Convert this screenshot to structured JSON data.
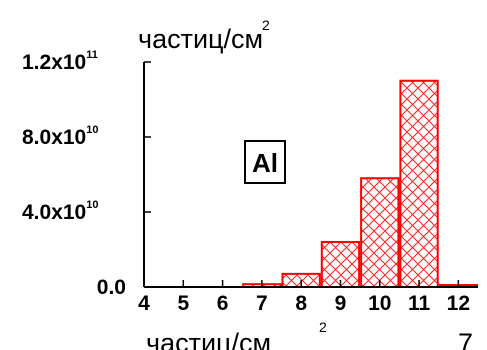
{
  "chart_data": {
    "type": "bar",
    "x": [
      7,
      8,
      9,
      10,
      11,
      12
    ],
    "values": [
      1500000000.0,
      7000000000.0,
      24000000000.0,
      58000000000.0,
      110000000000.0,
      300000000.0
    ],
    "xlim": [
      4,
      12.5
    ],
    "ylim": [
      0,
      120000000000.0
    ],
    "x_ticks": [
      "4",
      "5",
      "6",
      "7",
      "8",
      "9",
      "10",
      "11",
      "12"
    ],
    "y_ticks": [
      {
        "mantissa": "0.0",
        "exp": ""
      },
      {
        "mantissa": "4.0x10",
        "exp": "10"
      },
      {
        "mantissa": "8.0x10",
        "exp": "10"
      },
      {
        "mantissa": "1.2x10",
        "exp": "11"
      }
    ],
    "ylabel": "частиц/см",
    "ylabel_sup": "2",
    "bottom_label": "частиц/см",
    "bottom_label_sup": "2",
    "bottom_right_text": "7",
    "annotation": "Al",
    "bar_color": "#ff0000",
    "grid": false
  }
}
